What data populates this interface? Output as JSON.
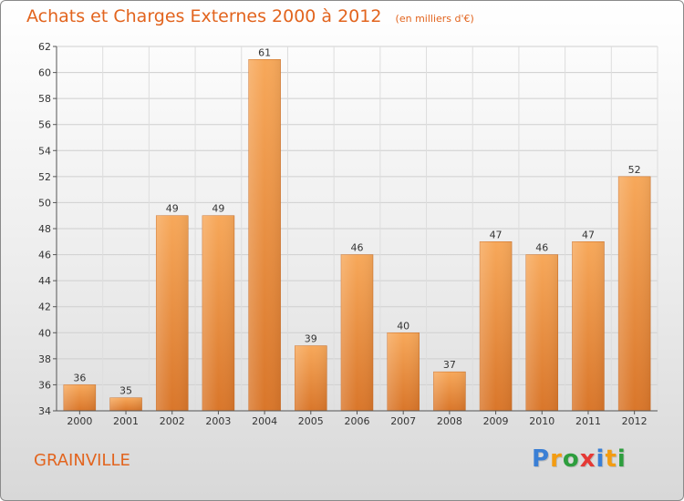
{
  "title": "Achats et Charges Externes 2000 à 2012",
  "unit_note": "(en milliers d'€)",
  "commune": "GRAINVILLE",
  "brand": {
    "letters": [
      "P",
      "r",
      "o",
      "x",
      "i",
      "t",
      "i"
    ],
    "colors": [
      "#3a7fd5",
      "#f39c12",
      "#2e9e3e",
      "#e53935",
      "#3a7fd5",
      "#f39c12",
      "#2e9e3e"
    ]
  },
  "colors": {
    "accent": "#e2641e",
    "bar_top": "#f7a85a",
    "bar_bottom": "#d9762a",
    "axis_text": "#333333"
  },
  "chart_data": {
    "type": "bar",
    "title": "Achats et Charges Externes 2000 à 2012",
    "subtitle": "(en milliers d'€)",
    "categories": [
      "2000",
      "2001",
      "2002",
      "2003",
      "2004",
      "2005",
      "2006",
      "2007",
      "2008",
      "2009",
      "2010",
      "2011",
      "2012"
    ],
    "values": [
      36,
      35,
      49,
      49,
      61,
      39,
      46,
      40,
      37,
      47,
      46,
      47,
      52
    ],
    "ylim": [
      34,
      62
    ],
    "yticks": [
      34,
      36,
      38,
      40,
      42,
      44,
      46,
      48,
      50,
      52,
      54,
      56,
      58,
      60,
      62
    ],
    "grid": true,
    "data_labels": true
  }
}
